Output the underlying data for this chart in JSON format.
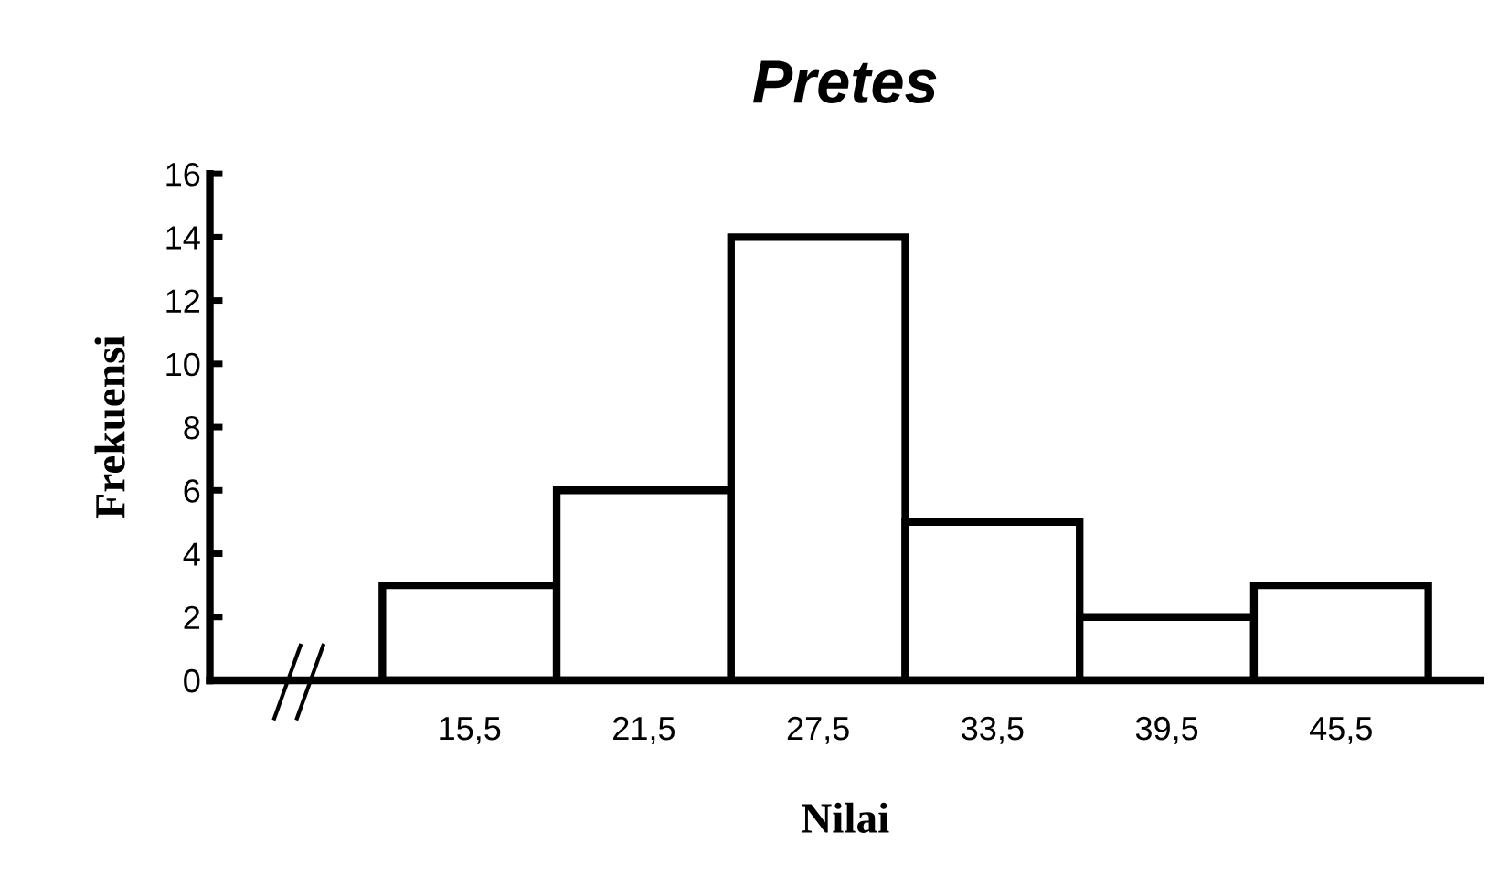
{
  "chart_data": {
    "type": "bar",
    "title": "Pretes",
    "xlabel": "Nilai",
    "ylabel": "Frekuensi",
    "categories": [
      "15,5",
      "21,5",
      "27,5",
      "33,5",
      "39,5",
      "45,5"
    ],
    "values": [
      3,
      6,
      14,
      5,
      2,
      3
    ],
    "color": "#ffffff",
    "ylim": [
      0,
      16
    ],
    "yticks": [
      0,
      2,
      4,
      6,
      8,
      10,
      12,
      14,
      16
    ],
    "grid": false,
    "legend": false
  }
}
